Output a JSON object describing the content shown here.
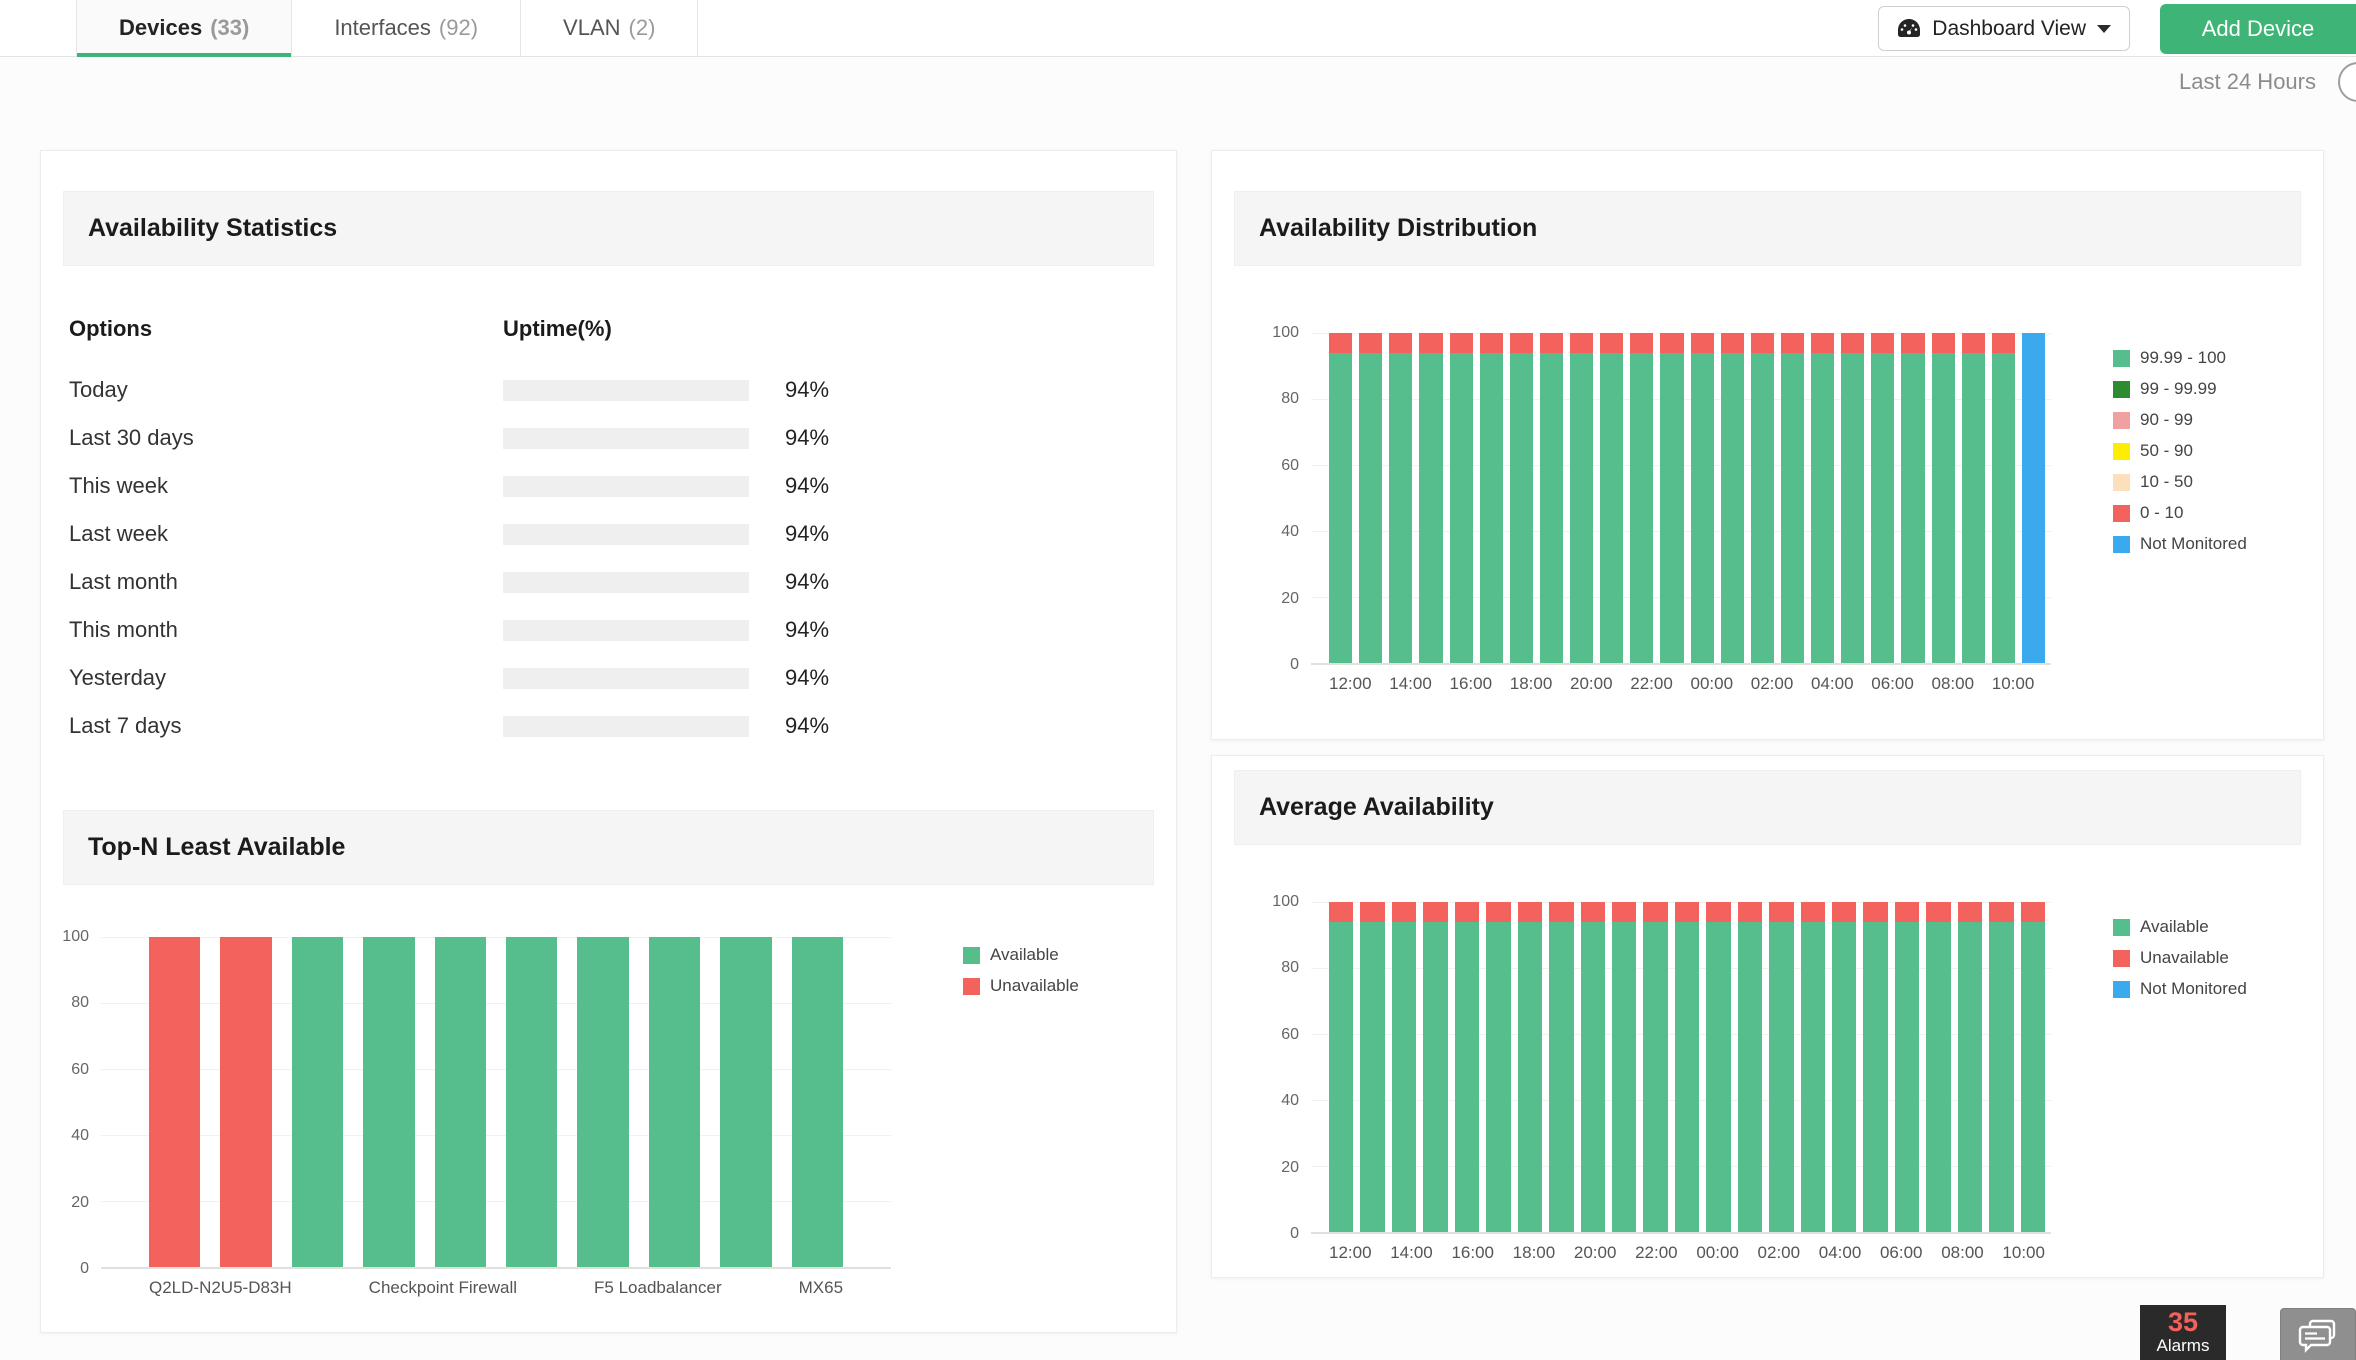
{
  "tabs": [
    {
      "name": "Devices",
      "count": "(33)",
      "active": true
    },
    {
      "name": "Interfaces",
      "count": "(92)",
      "active": false
    },
    {
      "name": "VLAN",
      "count": "(2)",
      "active": false
    }
  ],
  "toolbar": {
    "dashboard_view_label": "Dashboard View",
    "add_device_label": "Add Device"
  },
  "time_range_label": "Last 24 Hours",
  "panels": {
    "availability_statistics": {
      "title": "Availability Statistics",
      "columns": {
        "options": "Options",
        "uptime": "Uptime(%)"
      },
      "rows": [
        {
          "label": "Today",
          "value_pct": 94,
          "value_label": "94%"
        },
        {
          "label": "Last 30 days",
          "value_pct": 94,
          "value_label": "94%"
        },
        {
          "label": "This week",
          "value_pct": 94,
          "value_label": "94%"
        },
        {
          "label": "Last week",
          "value_pct": 94,
          "value_label": "94%"
        },
        {
          "label": "Last month",
          "value_pct": 94,
          "value_label": "94%"
        },
        {
          "label": "This month",
          "value_pct": 94,
          "value_label": "94%"
        },
        {
          "label": "Yesterday",
          "value_pct": 94,
          "value_label": "94%"
        },
        {
          "label": "Last 7 days",
          "value_pct": 94,
          "value_label": "94%"
        }
      ]
    },
    "top_n_least_available": {
      "title": "Top-N Least Available"
    },
    "availability_distribution": {
      "title": "Availability Distribution"
    },
    "average_availability": {
      "title": "Average Availability"
    }
  },
  "footer": {
    "alarm_count": "35",
    "alarms_label": "Alarms"
  },
  "colors": {
    "accent_green": "#3db47a",
    "bar_green": "#4cbb87",
    "chart_green": "#55be8c",
    "chart_red": "#f4625d",
    "chart_blue": "#3aa9ee",
    "dark_green": "#2f8b30",
    "pink": "#efa1a1",
    "yellow": "#ffed00",
    "peach": "#f9ce9f",
    "alarm_red": "#f4615c"
  },
  "chart_data": [
    {
      "type": "bar",
      "title": "Top-N Least Available",
      "ylim": [
        0,
        100
      ],
      "ymax": 100,
      "yticks": [
        0,
        20,
        40,
        60,
        80,
        100
      ],
      "x": [
        "Q2LD-N2U5-D83H",
        "",
        "",
        "Checkpoint Firewall",
        "",
        "",
        "F5 Loadbalancer",
        "",
        "",
        "MX65"
      ],
      "series": [
        {
          "name": "Available",
          "color": "#55be8c",
          "values": [
            0,
            0,
            100,
            100,
            100,
            100,
            100,
            100,
            100,
            100
          ]
        },
        {
          "name": "Unavailable",
          "color": "#f4625d",
          "values": [
            100,
            100,
            0,
            0,
            0,
            0,
            0,
            0,
            0,
            0
          ]
        }
      ],
      "legend": [
        {
          "label": "Available",
          "color": "#55be8c"
        },
        {
          "label": "Unavailable",
          "color": "#f4625d"
        }
      ],
      "legend_position": "right"
    },
    {
      "type": "bar",
      "title": "Availability Distribution",
      "stacked": true,
      "ylim": [
        0,
        100
      ],
      "ymax": 100,
      "yticks": [
        0,
        20,
        40,
        60,
        80,
        100
      ],
      "x": [
        "12:00",
        "",
        "14:00",
        "",
        "16:00",
        "",
        "18:00",
        "",
        "20:00",
        "",
        "22:00",
        "",
        "00:00",
        "",
        "02:00",
        "",
        "04:00",
        "",
        "06:00",
        "",
        "08:00",
        "",
        "10:00",
        ""
      ],
      "series": [
        {
          "name": "99.99 - 100",
          "color": "#55be8c",
          "values": [
            94,
            94,
            94,
            94,
            94,
            94,
            94,
            94,
            94,
            94,
            94,
            94,
            94,
            94,
            94,
            94,
            94,
            94,
            94,
            94,
            94,
            94,
            94,
            0
          ]
        },
        {
          "name": "0 - 10",
          "color": "#f4625d",
          "values": [
            6,
            6,
            6,
            6,
            6,
            6,
            6,
            6,
            6,
            6,
            6,
            6,
            6,
            6,
            6,
            6,
            6,
            6,
            6,
            6,
            6,
            6,
            6,
            0
          ]
        },
        {
          "name": "Not Monitored",
          "color": "#3aa9ee",
          "values": [
            0,
            0,
            0,
            0,
            0,
            0,
            0,
            0,
            0,
            0,
            0,
            0,
            0,
            0,
            0,
            0,
            0,
            0,
            0,
            0,
            0,
            0,
            0,
            100
          ]
        }
      ],
      "legend": [
        {
          "label": "99.99 - 100",
          "color": "#55be8c"
        },
        {
          "label": "99 - 99.99",
          "color": "#2f8b30"
        },
        {
          "label": "90 - 99",
          "color": "#efa1a1"
        },
        {
          "label": "50 - 90",
          "color": "#ffed00"
        },
        {
          "label": "10 - 50",
          "color": "#f9ce9f",
          "pattern": "dots"
        },
        {
          "label": "0 - 10",
          "color": "#f4625d"
        },
        {
          "label": "Not Monitored",
          "color": "#3aa9ee"
        }
      ],
      "legend_position": "right"
    },
    {
      "type": "bar",
      "title": "Average Availability",
      "stacked": true,
      "ylim": [
        0,
        100
      ],
      "ymax": 100,
      "yticks": [
        0,
        20,
        40,
        60,
        80,
        100
      ],
      "x": [
        "12:00",
        "",
        "14:00",
        "",
        "16:00",
        "",
        "18:00",
        "",
        "20:00",
        "",
        "22:00",
        "",
        "00:00",
        "",
        "02:00",
        "",
        "04:00",
        "",
        "06:00",
        "",
        "08:00",
        "",
        "10:00"
      ],
      "series": [
        {
          "name": "Available",
          "color": "#55be8c",
          "values": [
            94,
            94,
            94,
            94,
            94,
            94,
            94,
            94,
            94,
            94,
            94,
            94,
            94,
            94,
            94,
            94,
            94,
            94,
            94,
            94,
            94,
            94,
            94
          ]
        },
        {
          "name": "Unavailable",
          "color": "#f4625d",
          "values": [
            6,
            6,
            6,
            6,
            6,
            6,
            6,
            6,
            6,
            6,
            6,
            6,
            6,
            6,
            6,
            6,
            6,
            6,
            6,
            6,
            6,
            6,
            6
          ]
        }
      ],
      "legend": [
        {
          "label": "Available",
          "color": "#55be8c"
        },
        {
          "label": "Unavailable",
          "color": "#f4625d"
        },
        {
          "label": "Not Monitored",
          "color": "#3aa9ee"
        }
      ],
      "legend_position": "right"
    }
  ]
}
